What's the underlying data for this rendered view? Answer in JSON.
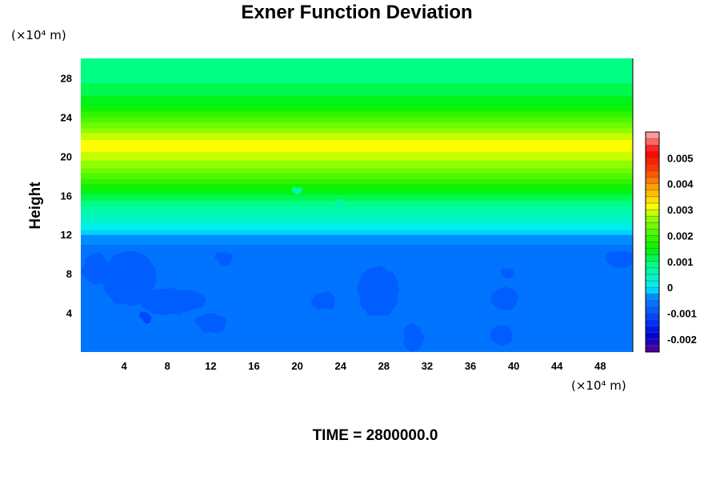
{
  "chart_data": {
    "type": "heatmap",
    "title": "Exner Function Deviation",
    "ylabel": "Height",
    "y_unit": "(×10⁴ m)",
    "x_unit": "(×10⁴ m)",
    "footer": "TIME = 2800000.0",
    "xlim": [
      0,
      51
    ],
    "ylim": [
      0,
      30
    ],
    "x_ticks": [
      4,
      8,
      12,
      16,
      20,
      24,
      28,
      32,
      36,
      40,
      44,
      48
    ],
    "y_ticks": [
      4,
      8,
      12,
      16,
      20,
      24,
      28
    ],
    "colorbar": {
      "min": -0.0025,
      "max": 0.006,
      "step": 0.00025,
      "tick_values": [
        0.005,
        0.004,
        0.003,
        0.002,
        0.001,
        0,
        -0.001,
        -0.002
      ],
      "tick_labels": [
        "0.005",
        "0.004",
        "0.003",
        "0.002",
        "0.001",
        "0",
        "-0.001",
        "-0.002"
      ]
    },
    "vertical_profile": [
      {
        "y": 0,
        "v": -0.00075
      },
      {
        "y": 10.5,
        "v": -0.00075
      },
      {
        "y": 11,
        "v": -0.0005
      },
      {
        "y": 12,
        "v": -0.00025
      },
      {
        "y": 12.5,
        "v": 0
      },
      {
        "y": 13.3,
        "v": 0.0003
      },
      {
        "y": 14.5,
        "v": 0.0006
      },
      {
        "y": 16,
        "v": 0.0012
      },
      {
        "y": 17.5,
        "v": 0.0019
      },
      {
        "y": 19,
        "v": 0.0026
      },
      {
        "y": 20.5,
        "v": 0.003
      },
      {
        "y": 21.5,
        "v": 0.0031
      },
      {
        "y": 22.5,
        "v": 0.0027
      },
      {
        "y": 24,
        "v": 0.002
      },
      {
        "y": 25.5,
        "v": 0.0014
      },
      {
        "y": 27.5,
        "v": 0.001
      },
      {
        "y": 30,
        "v": 0.0008
      }
    ],
    "anomalies": [
      {
        "x": 1.3,
        "y": 8.5,
        "rx": 1.2,
        "ry": 1.5,
        "v": -0.001
      },
      {
        "x": 4.5,
        "y": 7.5,
        "rx": 2.5,
        "ry": 2.8,
        "v": -0.001
      },
      {
        "x": 8.5,
        "y": 5.2,
        "rx": 3.0,
        "ry": 1.3,
        "v": -0.001
      },
      {
        "x": 12,
        "y": 3.0,
        "rx": 1.5,
        "ry": 1.0,
        "v": -0.001
      },
      {
        "x": 13.3,
        "y": 9.5,
        "rx": 0.8,
        "ry": 0.7,
        "v": -0.001
      },
      {
        "x": 6.0,
        "y": 3.5,
        "rx": 0.6,
        "ry": 0.6,
        "v": -0.00125
      },
      {
        "x": 22.5,
        "y": 5.2,
        "rx": 1.1,
        "ry": 0.9,
        "v": -0.001
      },
      {
        "x": 27.5,
        "y": 6.2,
        "rx": 1.9,
        "ry": 2.6,
        "v": -0.001
      },
      {
        "x": 30.7,
        "y": 1.5,
        "rx": 1.0,
        "ry": 1.3,
        "v": -0.001
      },
      {
        "x": 39.2,
        "y": 5.4,
        "rx": 1.3,
        "ry": 1.1,
        "v": -0.001
      },
      {
        "x": 39.4,
        "y": 8.1,
        "rx": 0.6,
        "ry": 0.5,
        "v": -0.001
      },
      {
        "x": 38.9,
        "y": 1.8,
        "rx": 1.0,
        "ry": 1.1,
        "v": -0.001
      },
      {
        "x": 49.9,
        "y": 9.5,
        "rx": 1.3,
        "ry": 0.9,
        "v": -0.001
      },
      {
        "x": 20,
        "y": 16.5,
        "rx": 0.6,
        "ry": 0.4,
        "v": 0.0007
      },
      {
        "x": 24,
        "y": 15,
        "rx": 0.6,
        "ry": 0.5,
        "v": 0.0007
      }
    ]
  }
}
